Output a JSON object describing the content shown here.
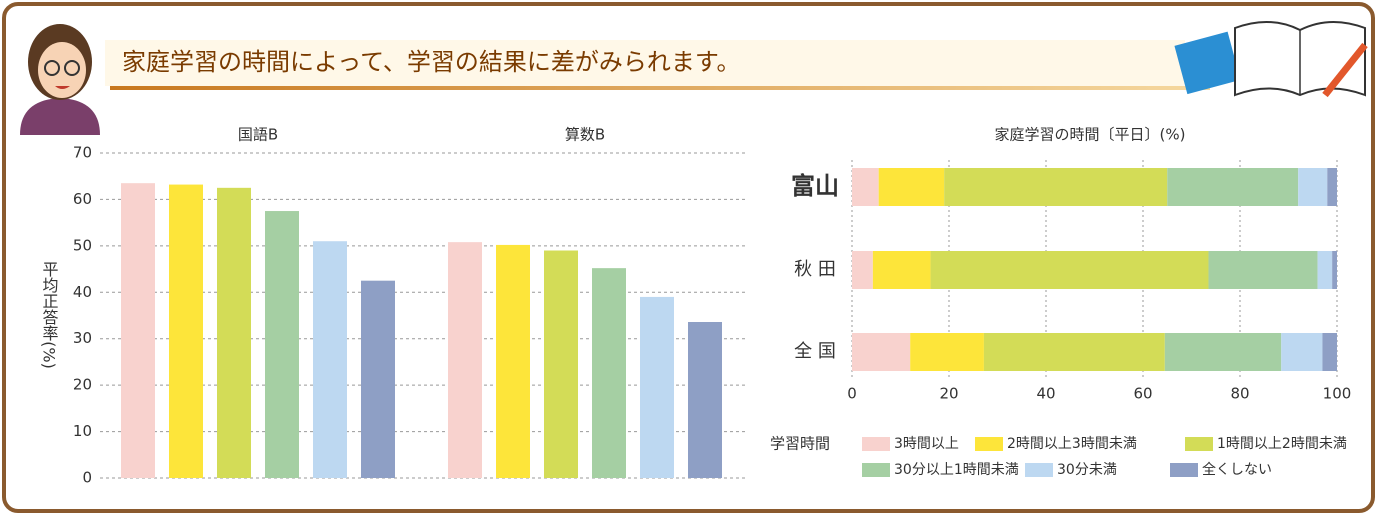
{
  "banner": {
    "title": "家庭学習の時間によって、学習の結果に差がみられます。"
  },
  "chart_data": [
    {
      "type": "grouped-bar",
      "ylabel": "平均正答率(%)",
      "categories": [
        "国語B",
        "算数B"
      ],
      "ylim": [
        0,
        70
      ],
      "yticks": [
        0,
        10,
        20,
        30,
        40,
        50,
        60,
        70
      ],
      "grid": true,
      "legend_title": "学習時間",
      "series": [
        {
          "name": "3時間以上",
          "color": "#f8d2ce",
          "values": [
            63.5,
            50.8
          ]
        },
        {
          "name": "2時間以上3時間未満",
          "color": "#fde53a",
          "values": [
            63.2,
            50.2
          ]
        },
        {
          "name": "1時間以上2時間未満",
          "color": "#d3dc57",
          "values": [
            62.5,
            49
          ]
        },
        {
          "name": "30分以上1時間未満",
          "color": "#a5cfa3",
          "values": [
            57.5,
            45.2
          ]
        },
        {
          "name": "30分未満",
          "color": "#bdd8f1",
          "values": [
            51,
            39
          ]
        },
        {
          "name": "全くしない",
          "color": "#8e9fc5",
          "values": [
            42.5,
            33.6
          ]
        }
      ]
    },
    {
      "type": "stacked-hbar",
      "title": "家庭学習の時間〔平日〕(%)",
      "categories": [
        "富山",
        "秋 田",
        "全 国"
      ],
      "xlim": [
        0,
        100
      ],
      "xticks": [
        0,
        20,
        40,
        60,
        80,
        100
      ],
      "grid": true,
      "series": [
        {
          "color": "#f8d2ce",
          "values": [
            5.5,
            4.3,
            12
          ]
        },
        {
          "color": "#fde53a",
          "values": [
            13.5,
            11.9,
            15.2
          ]
        },
        {
          "color": "#d3dc57",
          "values": [
            46,
            57.3,
            37.3
          ]
        },
        {
          "color": "#a5cfa3",
          "values": [
            27,
            22.5,
            24
          ]
        },
        {
          "color": "#bdd8f1",
          "values": [
            6,
            3,
            8.5
          ]
        },
        {
          "color": "#8e9fc5",
          "values": [
            2,
            1,
            3
          ]
        }
      ]
    }
  ]
}
